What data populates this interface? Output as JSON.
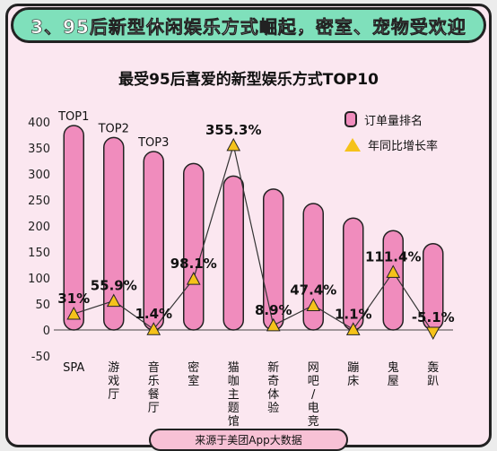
{
  "header": {
    "title": "3、95后新型休闲娱乐方式崛起，密室、宠物受欢迎"
  },
  "footer": {
    "source": "来源于美团App大数据"
  },
  "colors": {
    "bar": "#f08cbd",
    "marker": "#f5c21a",
    "header_bg": "#7fe0bb",
    "card_bg": "#fbe7f0",
    "outline": "#222222"
  },
  "chart_data": {
    "type": "bar",
    "title": "最受95后喜爱的新型娱乐方式TOP10",
    "categories": [
      "SPA",
      "游戏厅",
      "音乐餐厅",
      "密室",
      "猫咖主题馆",
      "新奇体验",
      "网吧/电竞",
      "蹦床",
      "鬼屋",
      "轰趴"
    ],
    "category_lines": [
      [
        "SPA"
      ],
      [
        "游",
        "戏",
        "厅"
      ],
      [
        "音",
        "乐",
        "餐",
        "厅"
      ],
      [
        "密",
        "室"
      ],
      [
        "猫",
        "咖",
        "主",
        "题",
        "馆"
      ],
      [
        "新",
        "奇",
        "体",
        "验"
      ],
      [
        "网",
        "吧",
        "/",
        "电",
        "竞"
      ],
      [
        "蹦",
        "床"
      ],
      [
        "鬼",
        "屋"
      ],
      [
        "轰",
        "趴"
      ]
    ],
    "top_labels": [
      "TOP1",
      "TOP2",
      "TOP3"
    ],
    "series": [
      {
        "name": "订单量排名",
        "type": "bar",
        "values": [
          393,
          370,
          343,
          320,
          296,
          271,
          243,
          215,
          191,
          166
        ]
      },
      {
        "name": "年同比增长率",
        "type": "line",
        "values": [
          31,
          55.9,
          1.4,
          98.1,
          355.3,
          8.9,
          47.4,
          1.1,
          111.4,
          -5.1
        ],
        "labels": [
          "31%",
          "55.9%",
          "1.4%",
          "98.1%",
          "355.3%",
          "8.9%",
          "47.4%",
          "1.1%",
          "111.4%",
          "-5.1%"
        ]
      }
    ],
    "ylim": [
      -50,
      400
    ],
    "yticks": [
      400,
      350,
      300,
      250,
      200,
      150,
      100,
      50,
      0,
      -50
    ],
    "legend_position": "top-right",
    "grid": false
  }
}
